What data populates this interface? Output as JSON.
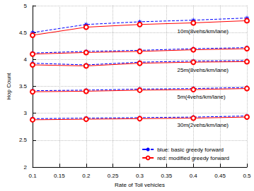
{
  "chart_data": {
    "type": "line",
    "x_label": "Rate of Toll vehicles",
    "y_label": "Hop Count",
    "x": [
      0.1,
      0.2,
      0.3,
      0.4,
      0.5
    ],
    "xlim": [
      0.1,
      0.5
    ],
    "xticks": [
      0.1,
      0.15,
      0.2,
      0.25,
      0.3,
      0.35,
      0.4,
      0.45,
      0.5
    ],
    "ylim": [
      2,
      5
    ],
    "yticks": [
      2,
      2.5,
      3,
      3.5,
      4,
      4.5,
      5
    ],
    "grid": true,
    "legend": "lower right",
    "series": [
      {
        "name": "blue: basic greedy forward",
        "color": "#0000ff",
        "marker": "star",
        "line_style": "dashed",
        "values": [
          4.5,
          4.65,
          4.7,
          4.73,
          4.77
        ]
      },
      {
        "name": "red: modified greedy forward",
        "color": "#ff0000",
        "marker": "circle",
        "line_style": "solid",
        "values": [
          4.45,
          4.6,
          4.65,
          4.68,
          4.72
        ]
      },
      {
        "name": "blue: basic greedy forward",
        "color": "#0000ff",
        "marker": "star",
        "line_style": "dashed",
        "values": [
          4.12,
          4.15,
          4.17,
          4.2,
          4.22
        ]
      },
      {
        "name": "red: modified greedy forward",
        "color": "#ff0000",
        "marker": "circle",
        "line_style": "solid",
        "values": [
          4.1,
          4.13,
          4.15,
          4.18,
          4.2
        ]
      },
      {
        "name": "blue: basic greedy forward",
        "color": "#0000ff",
        "marker": "star",
        "line_style": "dashed",
        "values": [
          3.93,
          3.9,
          3.95,
          3.97,
          3.98
        ]
      },
      {
        "name": "red: modified greedy forward",
        "color": "#ff0000",
        "marker": "circle",
        "line_style": "solid",
        "values": [
          3.9,
          3.88,
          3.93,
          3.95,
          3.96
        ]
      },
      {
        "name": "blue: basic greedy forward",
        "color": "#0000ff",
        "marker": "star",
        "line_style": "dashed",
        "values": [
          3.42,
          3.43,
          3.45,
          3.46,
          3.48
        ]
      },
      {
        "name": "red: modified greedy forward",
        "color": "#ff0000",
        "marker": "circle",
        "line_style": "solid",
        "values": [
          3.4,
          3.41,
          3.43,
          3.44,
          3.46
        ]
      },
      {
        "name": "blue: basic greedy forward",
        "color": "#0000ff",
        "marker": "star",
        "line_style": "dashed",
        "values": [
          2.9,
          2.91,
          2.92,
          2.93,
          2.95
        ]
      },
      {
        "name": "red: modified greedy forward",
        "color": "#ff0000",
        "marker": "circle",
        "line_style": "solid",
        "values": [
          2.88,
          2.89,
          2.9,
          2.91,
          2.93
        ]
      }
    ],
    "annotations": [
      {
        "text": "10m(8vehs/km/lane)",
        "x": 0.37,
        "y": 4.52
      },
      {
        "text": "25m(8vehs/km/lane)",
        "x": 0.37,
        "y": 3.8
      },
      {
        "text": "5m(4vehs/km/lane)",
        "x": 0.37,
        "y": 3.3
      },
      {
        "text": "30m(2vehs/km/lane)",
        "x": 0.37,
        "y": 2.78
      }
    ]
  }
}
